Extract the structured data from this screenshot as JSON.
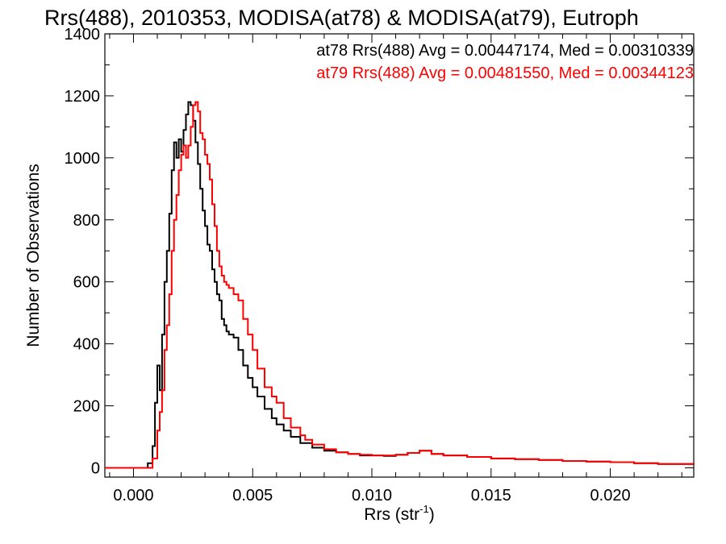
{
  "chart_data": {
    "type": "histogram",
    "title": "Rrs(488), 2010353, MODISA(at78) & MODISA(at79), Eutroph",
    "xlabel": "Rrs (str",
    "xlabel_sup": "-1",
    "xlabel_close": ")",
    "ylabel": "Number of Observations",
    "xlim": [
      -0.0012,
      0.0235
    ],
    "ylim": [
      -30,
      1400
    ],
    "x_ticks": [
      0.0,
      0.005,
      0.01,
      0.015,
      0.02
    ],
    "x_tick_labels": [
      "0.000",
      "0.005",
      "0.010",
      "0.015",
      "0.020"
    ],
    "y_ticks": [
      0,
      200,
      400,
      600,
      800,
      1000,
      1200,
      1400
    ],
    "y_tick_labels": [
      "0",
      "200",
      "400",
      "600",
      "800",
      "1000",
      "1200",
      "1400"
    ],
    "grid": false,
    "legend": "top-right",
    "colors": {
      "at78": "#000000",
      "at79": "#ff0000"
    },
    "series": [
      {
        "key": "at78",
        "stats_label": "at78 Rrs(488) Avg = 0.00447174, Med = 0.00310339",
        "x": [
          -0.0012,
          0.0004,
          0.0006,
          0.0008,
          0.0009,
          0.001,
          0.0011,
          0.0012,
          0.0013,
          0.0014,
          0.0015,
          0.0016,
          0.0017,
          0.0018,
          0.0019,
          0.002,
          0.0021,
          0.0022,
          0.0023,
          0.0024,
          0.0025,
          0.0026,
          0.0027,
          0.0028,
          0.0029,
          0.003,
          0.0031,
          0.0032,
          0.0033,
          0.0034,
          0.0035,
          0.0036,
          0.0037,
          0.0038,
          0.0039,
          0.004,
          0.0042,
          0.0044,
          0.0046,
          0.0048,
          0.005,
          0.0052,
          0.0055,
          0.0058,
          0.006,
          0.0063,
          0.0066,
          0.007,
          0.0075,
          0.008,
          0.0085,
          0.009,
          0.0095,
          0.01,
          0.0105,
          0.011,
          0.0115,
          0.012,
          0.0125,
          0.013,
          0.014,
          0.015,
          0.016,
          0.017,
          0.018,
          0.019,
          0.02,
          0.021,
          0.022,
          0.0235
        ],
        "y": [
          0,
          0,
          15,
          70,
          210,
          330,
          250,
          430,
          600,
          700,
          820,
          960,
          1050,
          1000,
          1060,
          1020,
          1090,
          1140,
          1180,
          1170,
          1120,
          1050,
          980,
          900,
          830,
          780,
          720,
          700,
          640,
          600,
          560,
          540,
          480,
          460,
          440,
          430,
          420,
          380,
          330,
          290,
          260,
          230,
          190,
          160,
          140,
          120,
          100,
          80,
          65,
          55,
          50,
          45,
          40,
          40,
          38,
          42,
          48,
          55,
          45,
          40,
          35,
          30,
          28,
          25,
          22,
          20,
          18,
          15,
          12,
          10
        ]
      },
      {
        "key": "at79",
        "stats_label": "at79 Rrs(488) Avg = 0.00481550, Med = 0.00344123",
        "x": [
          -0.0012,
          0.0006,
          0.0008,
          0.001,
          0.0011,
          0.0012,
          0.0013,
          0.0014,
          0.0015,
          0.0016,
          0.0017,
          0.0018,
          0.0019,
          0.002,
          0.0021,
          0.0022,
          0.0023,
          0.0024,
          0.0025,
          0.0026,
          0.0027,
          0.0028,
          0.0029,
          0.003,
          0.0031,
          0.0032,
          0.0033,
          0.0034,
          0.0035,
          0.0036,
          0.0037,
          0.0038,
          0.0039,
          0.004,
          0.0042,
          0.0044,
          0.0046,
          0.0048,
          0.005,
          0.0052,
          0.0055,
          0.0058,
          0.006,
          0.0063,
          0.0066,
          0.007,
          0.0072,
          0.0075,
          0.008,
          0.0085,
          0.009,
          0.0095,
          0.01,
          0.0105,
          0.011,
          0.0115,
          0.012,
          0.0125,
          0.013,
          0.014,
          0.015,
          0.016,
          0.017,
          0.018,
          0.019,
          0.02,
          0.021,
          0.022,
          0.0235
        ],
        "y": [
          0,
          0,
          30,
          120,
          180,
          250,
          380,
          460,
          560,
          700,
          800,
          880,
          960,
          1010,
          1040,
          1000,
          1040,
          1100,
          1170,
          1180,
          1150,
          1080,
          1060,
          1010,
          980,
          930,
          850,
          780,
          700,
          650,
          620,
          600,
          590,
          580,
          560,
          540,
          480,
          430,
          380,
          320,
          260,
          230,
          210,
          160,
          130,
          105,
          90,
          75,
          60,
          50,
          45,
          42,
          40,
          40,
          42,
          48,
          55,
          45,
          40,
          35,
          30,
          28,
          25,
          22,
          20,
          18,
          15,
          12,
          10
        ]
      }
    ]
  }
}
